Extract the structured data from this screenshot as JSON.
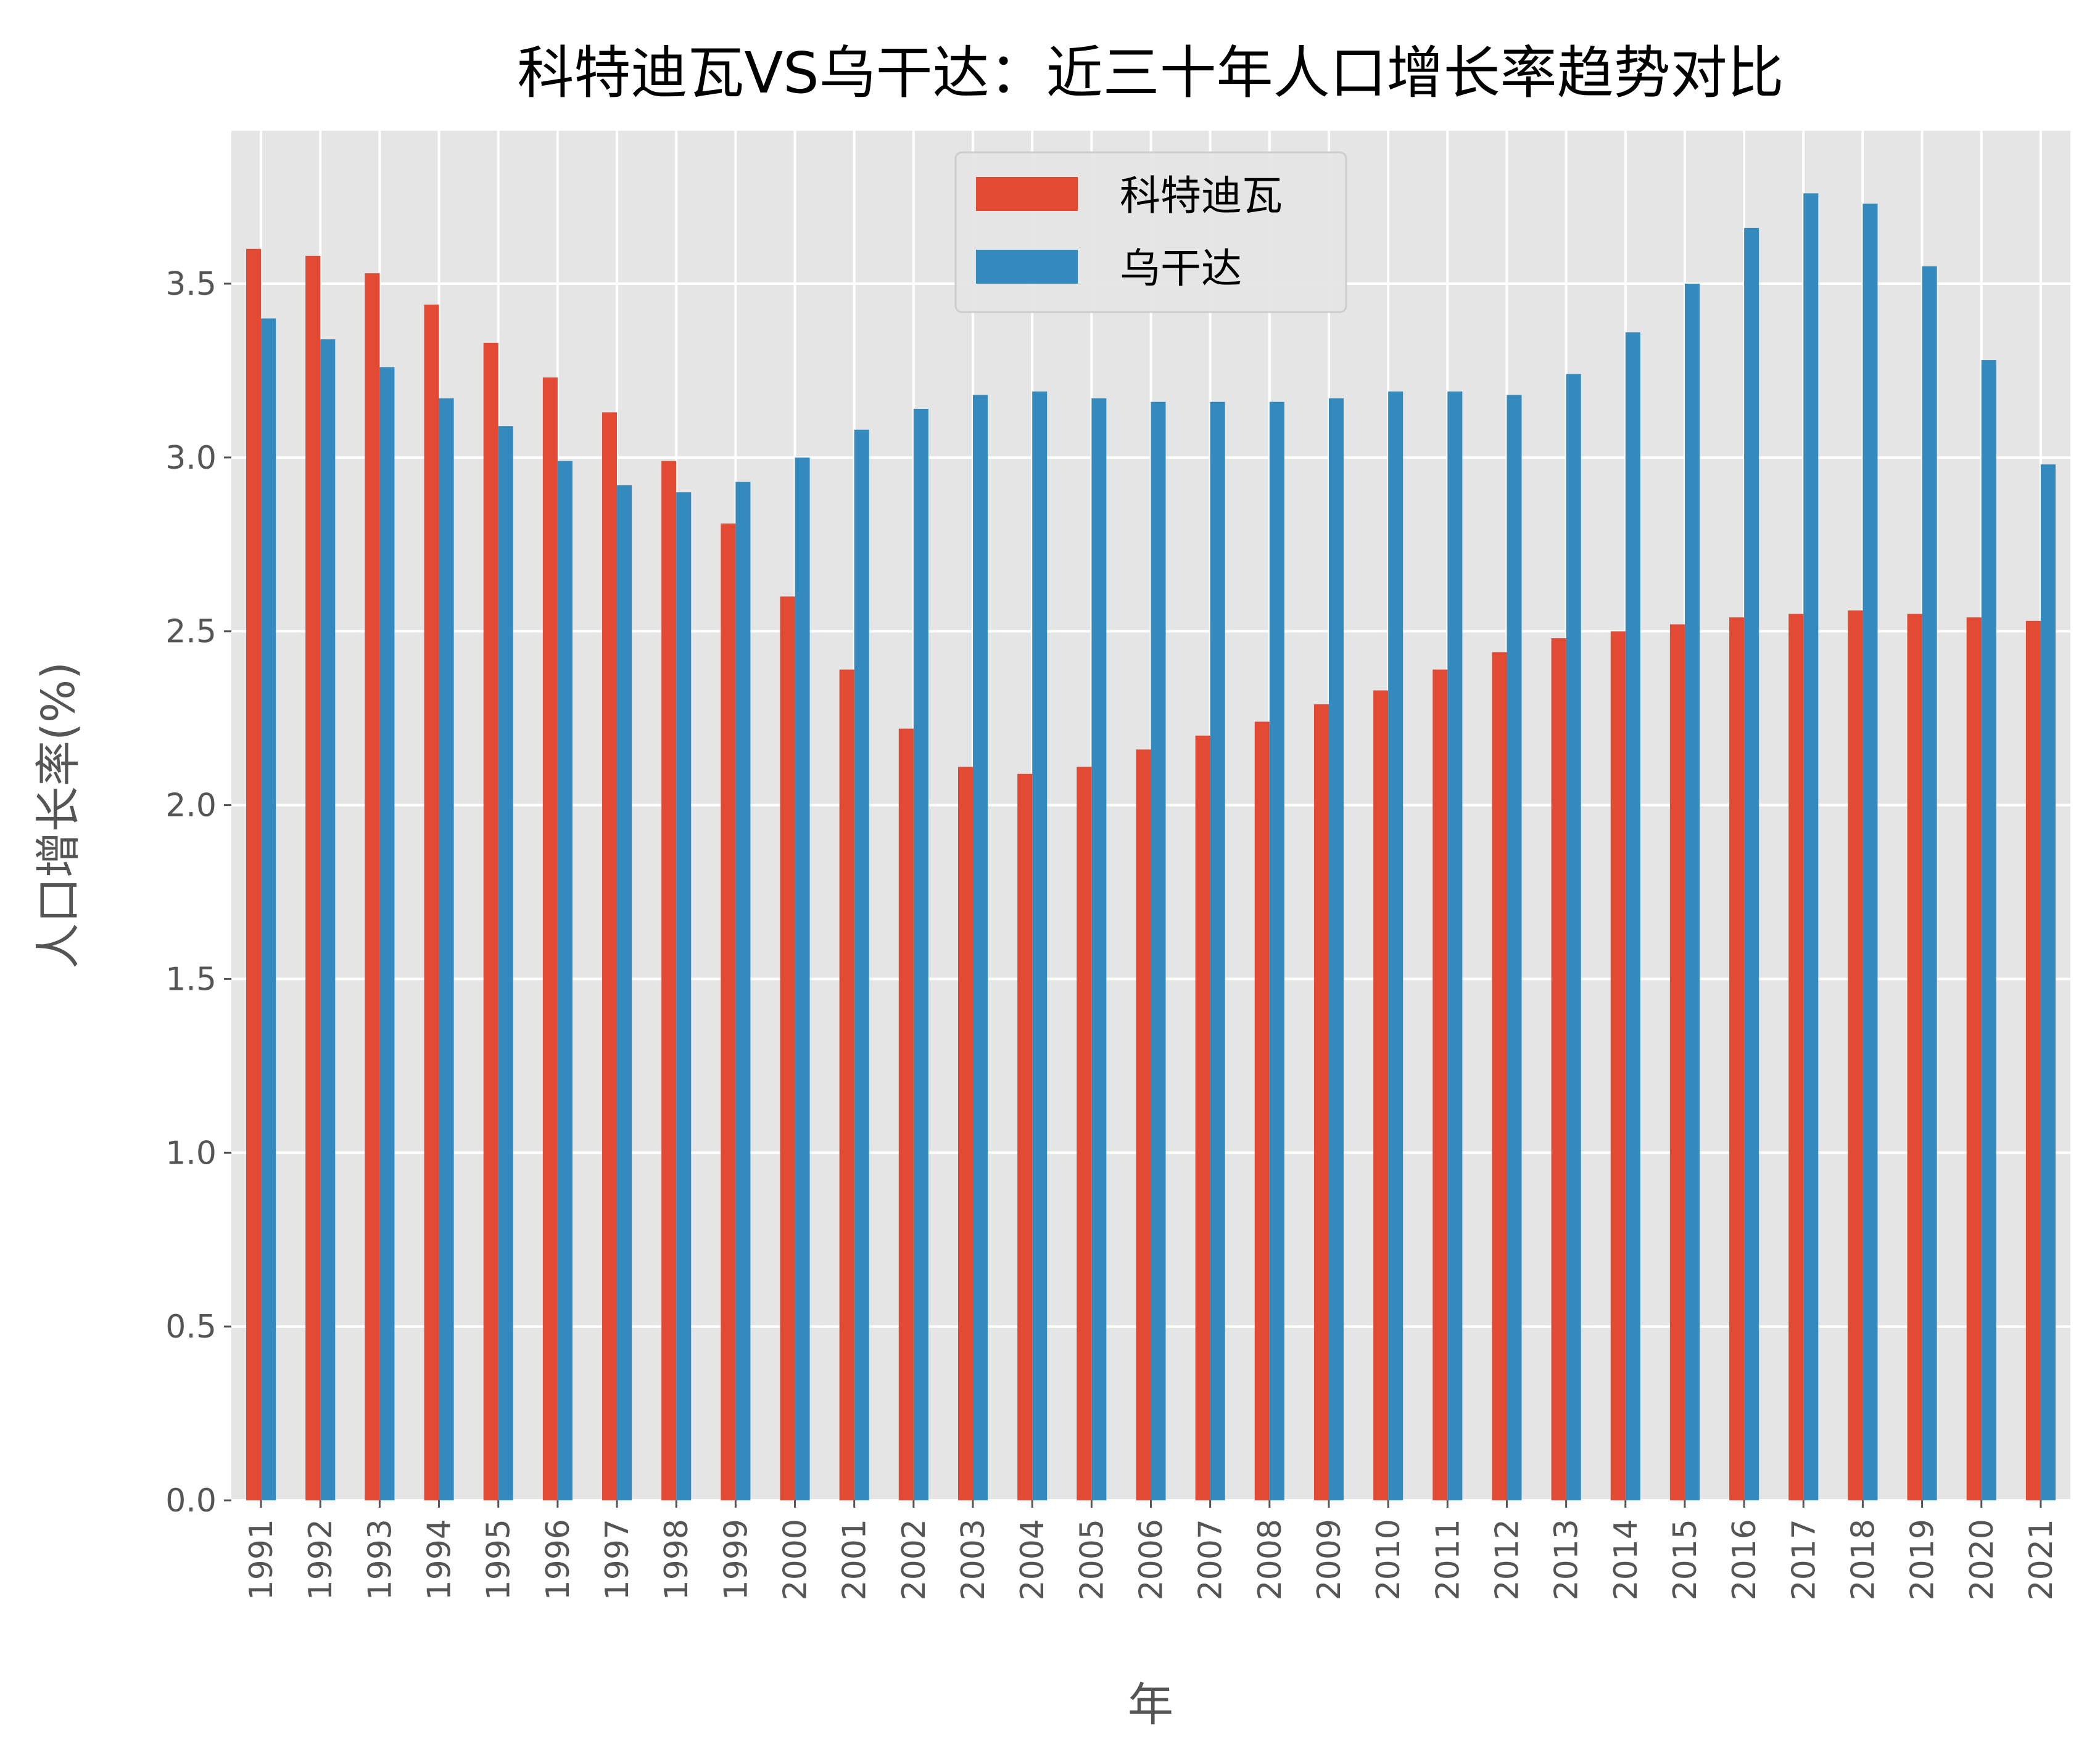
{
  "chart_data": {
    "type": "bar",
    "title": "科特迪瓦VS乌干达：近三十年人口增长率趋势对比",
    "xlabel": "年",
    "ylabel": "人口增长率(%)",
    "ylim": [
      0,
      3.94
    ],
    "yticks": [
      "0.0",
      "0.5",
      "1.0",
      "1.5",
      "2.0",
      "2.5",
      "3.0",
      "3.5"
    ],
    "grid": true,
    "legend_position": "top-center",
    "categories": [
      "1991",
      "1992",
      "1993",
      "1994",
      "1995",
      "1996",
      "1997",
      "1998",
      "1999",
      "2000",
      "2001",
      "2002",
      "2003",
      "2004",
      "2005",
      "2006",
      "2007",
      "2008",
      "2009",
      "2010",
      "2011",
      "2012",
      "2013",
      "2014",
      "2015",
      "2016",
      "2017",
      "2018",
      "2019",
      "2020",
      "2021"
    ],
    "series": [
      {
        "name": "科特迪瓦",
        "color": "#E24A33",
        "values": [
          3.6,
          3.58,
          3.53,
          3.44,
          3.33,
          3.23,
          3.13,
          2.99,
          2.81,
          2.6,
          2.39,
          2.22,
          2.11,
          2.09,
          2.11,
          2.16,
          2.2,
          2.24,
          2.29,
          2.33,
          2.39,
          2.44,
          2.48,
          2.5,
          2.52,
          2.54,
          2.55,
          2.56,
          2.55,
          2.54,
          2.53
        ]
      },
      {
        "name": "乌干达",
        "color": "#348ABD",
        "values": [
          3.4,
          3.34,
          3.26,
          3.17,
          3.09,
          2.99,
          2.92,
          2.9,
          2.93,
          3.0,
          3.08,
          3.14,
          3.18,
          3.19,
          3.17,
          3.16,
          3.16,
          3.16,
          3.17,
          3.19,
          3.19,
          3.18,
          3.24,
          3.36,
          3.5,
          3.66,
          3.76,
          3.73,
          3.55,
          3.28,
          2.98
        ]
      }
    ],
    "background_color": "#E5E5E5"
  }
}
